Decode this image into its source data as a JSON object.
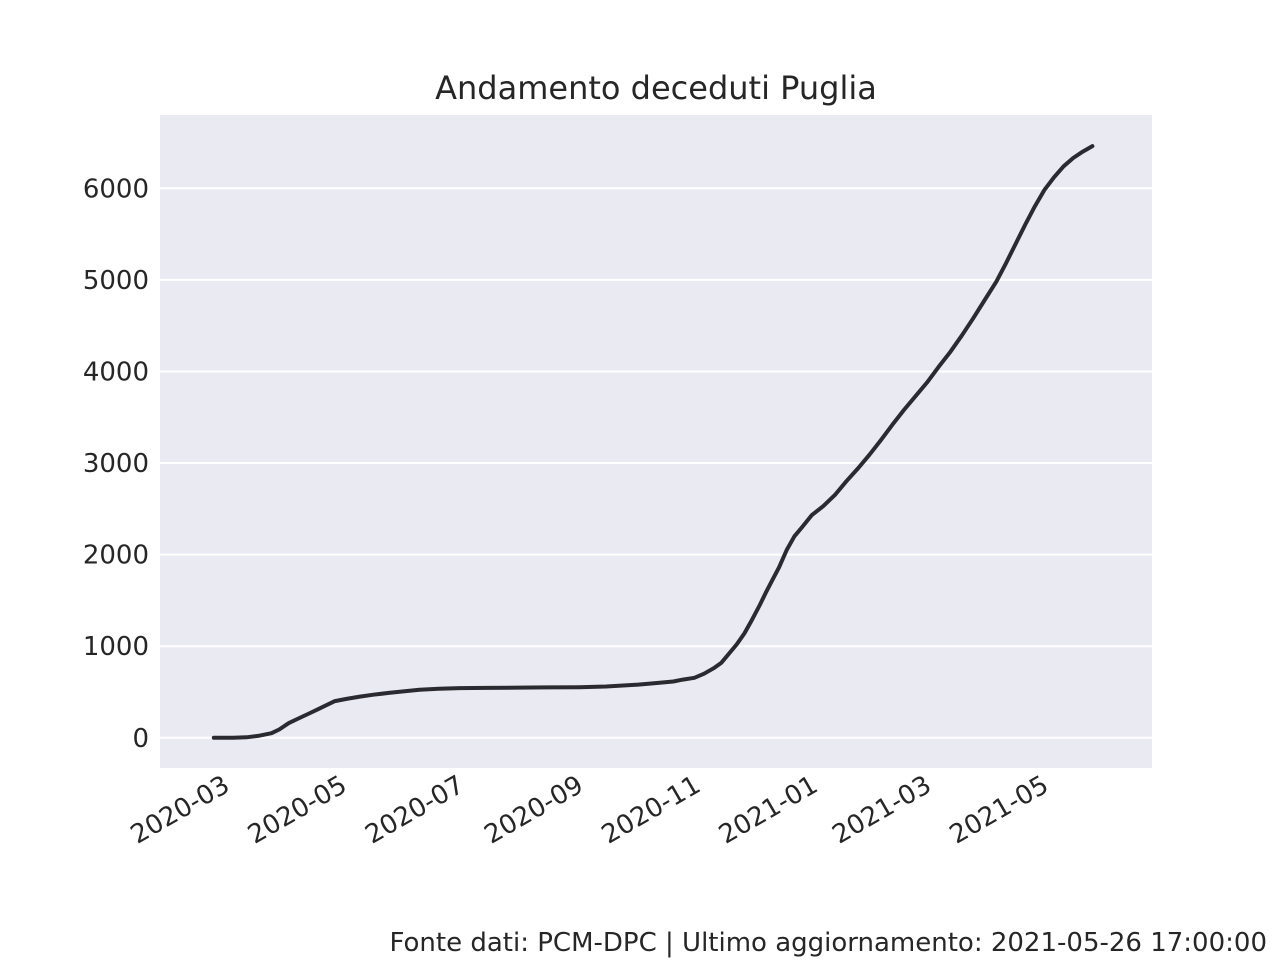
{
  "colors": {
    "plot_bg": "#EAEAF2",
    "grid": "#FFFFFF",
    "line": "#2A2A30",
    "text": "#262626"
  },
  "footer": "Fonte dati: PCM-DPC | Ultimo aggiornamento: 2021-05-26 17:00:00",
  "chart_data": {
    "type": "line",
    "title": "Andamento deceduti Puglia",
    "xlabel": "",
    "ylabel": "",
    "grid": "horizontal",
    "xlim": [
      "2020-01-27",
      "2021-06-26"
    ],
    "ylim": [
      -330,
      6800
    ],
    "yticks": [
      0,
      1000,
      2000,
      3000,
      4000,
      5000,
      6000
    ],
    "xticks": [
      {
        "date": "2020-03-01",
        "label": "2020-03"
      },
      {
        "date": "2020-05-01",
        "label": "2020-05"
      },
      {
        "date": "2020-07-01",
        "label": "2020-07"
      },
      {
        "date": "2020-09-01",
        "label": "2020-09"
      },
      {
        "date": "2020-11-01",
        "label": "2020-11"
      },
      {
        "date": "2021-01-01",
        "label": "2021-01"
      },
      {
        "date": "2021-03-01",
        "label": "2021-03"
      },
      {
        "date": "2021-05-01",
        "label": "2021-05"
      }
    ],
    "series": [
      {
        "points": [
          [
            "2020-02-24",
            0
          ],
          [
            "2020-03-05",
            0
          ],
          [
            "2020-03-12",
            5
          ],
          [
            "2020-03-18",
            20
          ],
          [
            "2020-03-25",
            50
          ],
          [
            "2020-03-29",
            90
          ],
          [
            "2020-04-03",
            160
          ],
          [
            "2020-04-08",
            210
          ],
          [
            "2020-04-13",
            260
          ],
          [
            "2020-04-18",
            310
          ],
          [
            "2020-04-22",
            350
          ],
          [
            "2020-04-27",
            400
          ],
          [
            "2020-05-03",
            425
          ],
          [
            "2020-05-10",
            450
          ],
          [
            "2020-05-17",
            470
          ],
          [
            "2020-05-25",
            490
          ],
          [
            "2020-06-01",
            505
          ],
          [
            "2020-06-10",
            525
          ],
          [
            "2020-06-20",
            535
          ],
          [
            "2020-07-01",
            542
          ],
          [
            "2020-07-15",
            545
          ],
          [
            "2020-08-01",
            548
          ],
          [
            "2020-08-15",
            550
          ],
          [
            "2020-09-01",
            552
          ],
          [
            "2020-09-15",
            560
          ],
          [
            "2020-10-01",
            580
          ],
          [
            "2020-10-10",
            595
          ],
          [
            "2020-10-20",
            615
          ],
          [
            "2020-10-25",
            635
          ],
          [
            "2020-10-31",
            655
          ],
          [
            "2020-11-05",
            700
          ],
          [
            "2020-11-10",
            760
          ],
          [
            "2020-11-14",
            820
          ],
          [
            "2020-11-18",
            920
          ],
          [
            "2020-11-22",
            1020
          ],
          [
            "2020-11-26",
            1140
          ],
          [
            "2020-11-30",
            1290
          ],
          [
            "2020-12-04",
            1450
          ],
          [
            "2020-12-07",
            1580
          ],
          [
            "2020-12-10",
            1700
          ],
          [
            "2020-12-14",
            1860
          ],
          [
            "2020-12-18",
            2050
          ],
          [
            "2020-12-22",
            2200
          ],
          [
            "2020-12-26",
            2300
          ],
          [
            "2020-12-31",
            2430
          ],
          [
            "2021-01-06",
            2530
          ],
          [
            "2021-01-12",
            2650
          ],
          [
            "2021-01-18",
            2800
          ],
          [
            "2021-01-24",
            2940
          ],
          [
            "2021-01-30",
            3090
          ],
          [
            "2021-02-05",
            3250
          ],
          [
            "2021-02-11",
            3420
          ],
          [
            "2021-02-17",
            3580
          ],
          [
            "2021-02-23",
            3730
          ],
          [
            "2021-03-01",
            3880
          ],
          [
            "2021-03-07",
            4050
          ],
          [
            "2021-03-13",
            4210
          ],
          [
            "2021-03-19",
            4390
          ],
          [
            "2021-03-25",
            4580
          ],
          [
            "2021-03-31",
            4780
          ],
          [
            "2021-04-06",
            4980
          ],
          [
            "2021-04-11",
            5180
          ],
          [
            "2021-04-16",
            5390
          ],
          [
            "2021-04-21",
            5600
          ],
          [
            "2021-04-26",
            5800
          ],
          [
            "2021-05-01",
            5980
          ],
          [
            "2021-05-06",
            6120
          ],
          [
            "2021-05-11",
            6240
          ],
          [
            "2021-05-16",
            6330
          ],
          [
            "2021-05-21",
            6400
          ],
          [
            "2021-05-26",
            6460
          ]
        ]
      }
    ]
  }
}
